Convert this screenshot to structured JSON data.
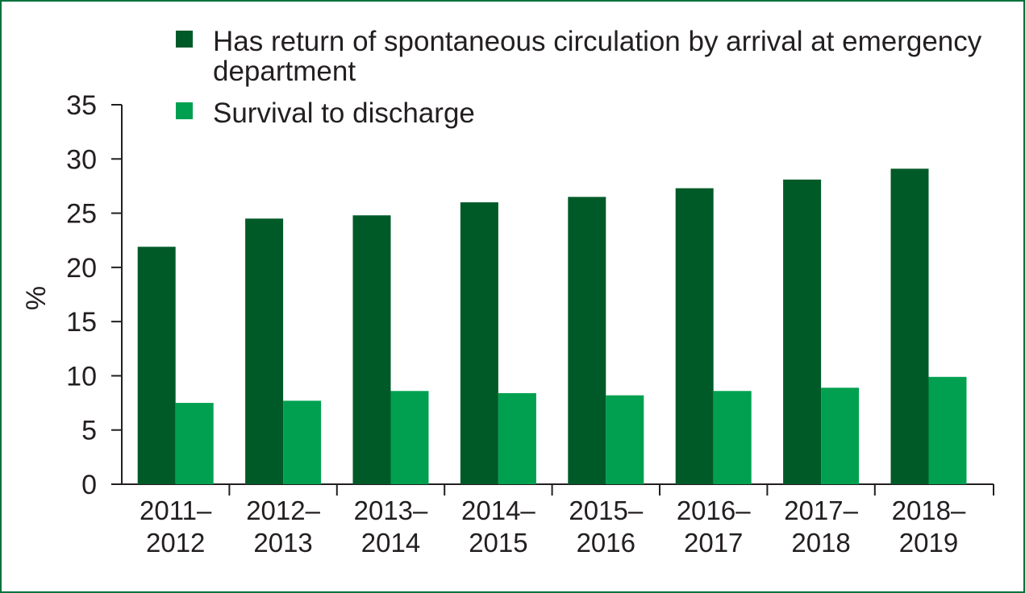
{
  "chart_data": {
    "type": "bar",
    "title": "",
    "xlabel": "",
    "ylabel": "%",
    "ylim": [
      0,
      35
    ],
    "yticks": [
      0,
      5,
      10,
      15,
      20,
      25,
      30,
      35
    ],
    "categories": [
      [
        "2011–",
        "2012"
      ],
      [
        "2012–",
        "2013"
      ],
      [
        "2013–",
        "2014"
      ],
      [
        "2014–",
        "2015"
      ],
      [
        "2015–",
        "2016"
      ],
      [
        "2016–",
        "2017"
      ],
      [
        "2017–",
        "2018"
      ],
      [
        "2018–",
        "2019"
      ]
    ],
    "series": [
      {
        "name": "Has return of spontaneous circulation by arrival at emergency department",
        "legend_lines": [
          "Has return of spontaneous circulation by arrival at emergency",
          "department"
        ],
        "color": "#005a28",
        "values": [
          21.9,
          24.5,
          24.8,
          26.0,
          26.5,
          27.3,
          28.1,
          29.1
        ]
      },
      {
        "name": "Survival to discharge",
        "legend_lines": [
          "Survival to discharge"
        ],
        "color": "#00a050",
        "values": [
          7.5,
          7.7,
          8.6,
          8.4,
          8.2,
          8.6,
          8.9,
          9.9
        ]
      }
    ],
    "grid": false,
    "legend_position": "top-right"
  }
}
